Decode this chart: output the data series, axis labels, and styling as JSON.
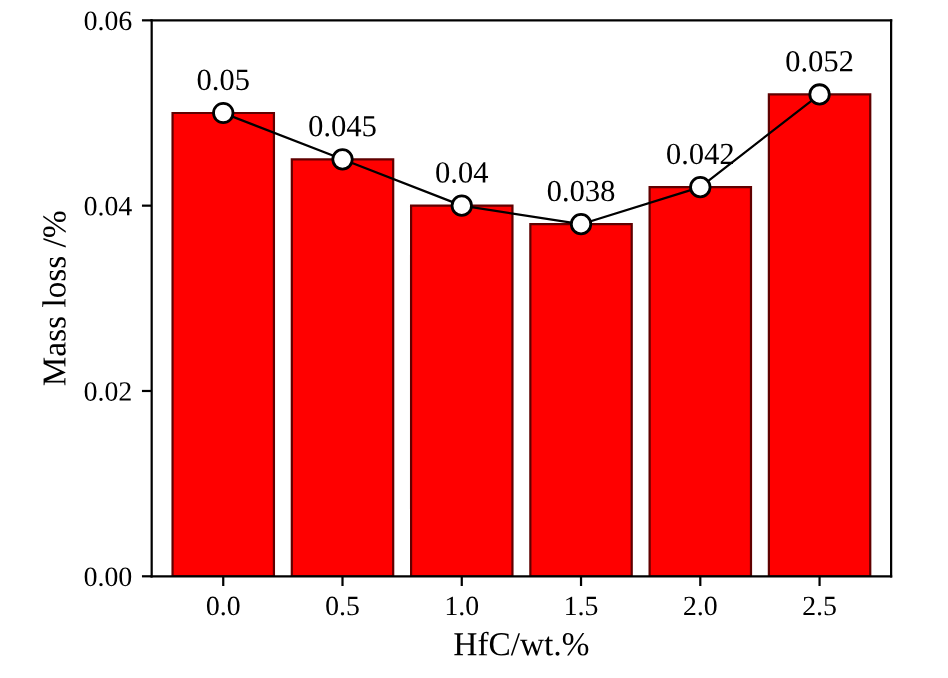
{
  "chart_data": {
    "type": "bar",
    "xlabel": "HfC/wt.%",
    "ylabel": "Mass loss /%",
    "categories": [
      "0.0",
      "0.5",
      "1.0",
      "1.5",
      "2.0",
      "2.5"
    ],
    "ylim": [
      0,
      0.06
    ],
    "yticks": [
      {
        "value": 0,
        "label": "0.00"
      },
      {
        "value": 0.02,
        "label": "0.02"
      },
      {
        "value": 0.04,
        "label": "0.04"
      },
      {
        "value": 0.06,
        "label": "0.06"
      }
    ],
    "series": [
      {
        "color": "#ff0000",
        "values": [
          0.05,
          0.045,
          0.04,
          0.038,
          0.042,
          0.052
        ]
      },
      {
        "type": "line",
        "color": "#000000",
        "marker": "circle",
        "values": [
          0.05,
          0.045,
          0.04,
          0.038,
          0.042,
          0.052
        ],
        "value_labels": [
          "0.05",
          "0.045",
          "0.04",
          "0.038",
          "0.042",
          "0.052"
        ]
      }
    ]
  }
}
